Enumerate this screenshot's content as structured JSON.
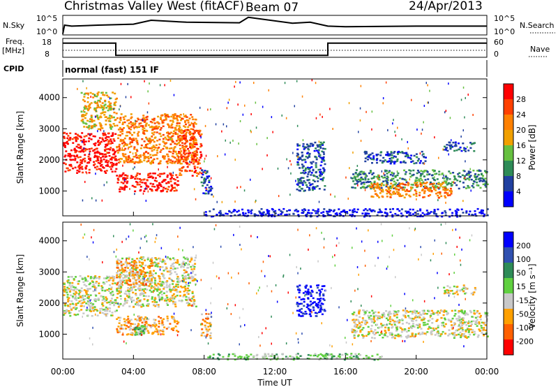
{
  "header": {
    "station": "Christmas Valley West (fitACF)",
    "beam": "Beam 07",
    "date": "24/Apr/2013"
  },
  "params": {
    "nsky_label": "N.Sky",
    "nsky_tick_top": "10^5",
    "nsky_tick_bottom": "10^0",
    "nsearch_label": "N.Search",
    "nsearch_tick_top": "10^5",
    "nsearch_tick_bottom": "10^0",
    "freq_label_1": "Freq.",
    "freq_label_2": "[MHz]",
    "freq_tick_top": "18",
    "freq_tick_bottom": "8",
    "nave_label": "Nave",
    "nave_tick_top": "60",
    "nave_tick_bottom": "0",
    "cpid_label": "CPID",
    "cpid_value": "normal (fast) 151 IF"
  },
  "colors": {
    "power": [
      "#0000ff",
      "#2040a0",
      "#2e8b57",
      "#66c040",
      "#f0a000",
      "#ff8000",
      "#ff4000",
      "#ff0000"
    ],
    "velocity": [
      "#ff0000",
      "#ff6000",
      "#ffa000",
      "#c8c8c8",
      "#60d040",
      "#2e8b57",
      "#3050b0",
      "#0000ff"
    ],
    "ground": "#c8c8c8"
  },
  "power_scale": {
    "label": "Power [dB]",
    "ticks": [
      "28",
      "24",
      "20",
      "16",
      "12",
      "8",
      "4"
    ]
  },
  "velocity_scale": {
    "label": "Velocity [m s⁻¹]",
    "ticks": [
      "200",
      "100",
      "50",
      "15",
      "-15",
      "-50",
      "-100",
      "-200"
    ]
  },
  "chart_data": [
    {
      "type": "heatmap",
      "panel": "power",
      "ylabel": "Slant Range [km]",
      "yticks": [
        "1000",
        "2000",
        "3000",
        "4000"
      ],
      "ylim": [
        200,
        4600
      ],
      "xlim": [
        0,
        24
      ],
      "regions": [
        {
          "t0": 0,
          "t1": 3,
          "r0": 1600,
          "r1": 2900,
          "level": 7
        },
        {
          "t0": 1,
          "t1": 3,
          "r0": 3000,
          "r1": 4200,
          "level": 4
        },
        {
          "t0": 3,
          "t1": 6.5,
          "r0": 1000,
          "r1": 1600,
          "level": 7
        },
        {
          "t0": 3,
          "t1": 7.5,
          "r0": 1900,
          "r1": 3500,
          "level": 5
        },
        {
          "t0": 6.5,
          "t1": 7.8,
          "r0": 1500,
          "r1": 3000,
          "level": 6
        },
        {
          "t0": 7.8,
          "t1": 8.4,
          "r0": 900,
          "r1": 1700,
          "level": 1
        },
        {
          "t0": 13.2,
          "t1": 14.8,
          "r0": 1000,
          "r1": 2600,
          "level": 1
        },
        {
          "t0": 16.3,
          "t1": 24,
          "r0": 1100,
          "r1": 1700,
          "level": 2
        },
        {
          "t0": 17.3,
          "t1": 22,
          "r0": 800,
          "r1": 1300,
          "level": 5
        },
        {
          "t0": 21.5,
          "t1": 23.3,
          "r0": 2300,
          "r1": 2600,
          "level": 1
        },
        {
          "t0": 17,
          "t1": 20.5,
          "r0": 1900,
          "r1": 2300,
          "level": 1
        },
        {
          "t0": 8,
          "t1": 24,
          "r0": 200,
          "r1": 450,
          "level": 0
        }
      ]
    },
    {
      "type": "heatmap",
      "panel": "velocity",
      "ylabel": "Slant Range [km]",
      "yticks": [
        "1000",
        "2000",
        "3000",
        "4000"
      ],
      "ylim": [
        200,
        4600
      ],
      "xlim": [
        0,
        24
      ],
      "xlabel": "Time UT",
      "xticks": [
        "00:00",
        "04:00",
        "08:00",
        "12:00",
        "16:00",
        "20:00",
        "00:00"
      ],
      "regions": [
        {
          "t0": 0,
          "t1": 3,
          "r0": 1600,
          "r1": 2900,
          "level": 3
        },
        {
          "t0": 3,
          "t1": 6.5,
          "r0": 1000,
          "r1": 1600,
          "level": 2
        },
        {
          "t0": 3,
          "t1": 7.5,
          "r0": 1900,
          "r1": 3500,
          "level": 3
        },
        {
          "t0": 3,
          "t1": 5,
          "r0": 2600,
          "r1": 3400,
          "level": 2
        },
        {
          "t0": 4,
          "t1": 4.6,
          "r0": 1000,
          "r1": 1300,
          "level": 4
        },
        {
          "t0": 7.8,
          "t1": 8.4,
          "r0": 900,
          "r1": 1700,
          "level": 2
        },
        {
          "t0": 13.2,
          "t1": 14.8,
          "r0": 1600,
          "r1": 2600,
          "level": 7
        },
        {
          "t0": 16.3,
          "t1": 24,
          "r0": 900,
          "r1": 1800,
          "level": 3
        },
        {
          "t0": 21.5,
          "t1": 23.3,
          "r0": 2300,
          "r1": 2600,
          "level": 3
        },
        {
          "t0": 8,
          "t1": 18,
          "r0": 200,
          "r1": 400,
          "level": 4
        }
      ]
    },
    {
      "type": "line",
      "panel": "nsky",
      "x": [
        0,
        0.1,
        0.5,
        2,
        4,
        5,
        7,
        10,
        10.5,
        13,
        14,
        15,
        16,
        20,
        24
      ],
      "y": [
        0.05,
        0.5,
        0.45,
        0.5,
        0.55,
        0.75,
        0.65,
        0.62,
        0.9,
        0.6,
        0.65,
        0.45,
        0.42,
        0.45,
        0.45
      ]
    },
    {
      "type": "line",
      "panel": "frequency",
      "x": [
        0,
        3,
        3,
        15,
        15,
        24
      ],
      "y": [
        0.75,
        0.75,
        0.1,
        0.1,
        0.75,
        0.75
      ]
    }
  ]
}
